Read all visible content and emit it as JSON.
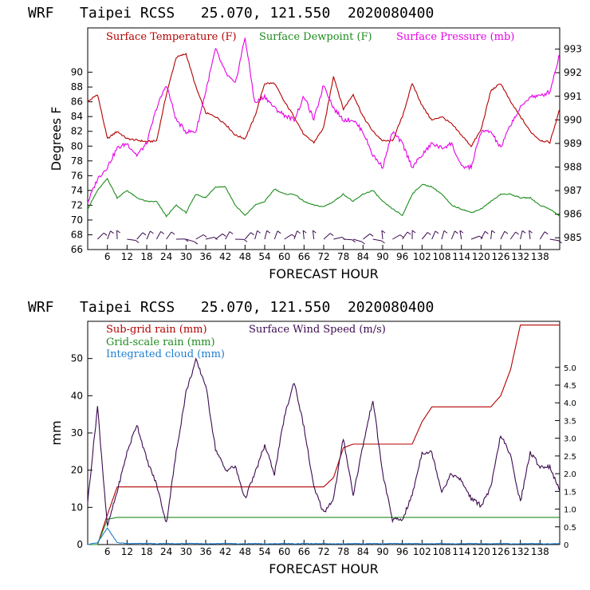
{
  "chart_data": [
    {
      "type": "line",
      "title": "WRF   Taipei RCSS   25.070, 121.550  2020080400",
      "xlabel": "FORECAST HOUR",
      "ylabel": "Degrees F",
      "xlim": [
        0,
        144
      ],
      "ylim": [
        66,
        96
      ],
      "y2lim": [
        984.5,
        993.9
      ],
      "x_ticks": [
        "6",
        "12",
        "18",
        "24",
        "30",
        "36",
        "42",
        "48",
        "54",
        "60",
        "66",
        "72",
        "78",
        "84",
        "90",
        "96",
        "102",
        "108",
        "114",
        "120",
        "126",
        "132",
        "138"
      ],
      "y_ticks": [
        "66",
        "68",
        "70",
        "72",
        "74",
        "76",
        "78",
        "80",
        "82",
        "84",
        "86",
        "88",
        "90"
      ],
      "y2_ticks": [
        "985",
        "986",
        "987",
        "988",
        "989",
        "990",
        "991",
        "992",
        "993"
      ],
      "x": [
        0,
        3,
        6,
        9,
        12,
        15,
        18,
        21,
        24,
        27,
        30,
        33,
        36,
        39,
        42,
        45,
        48,
        51,
        54,
        57,
        60,
        63,
        66,
        69,
        72,
        75,
        78,
        81,
        84,
        87,
        90,
        93,
        96,
        99,
        102,
        105,
        108,
        111,
        114,
        117,
        120,
        123,
        126,
        129,
        132,
        135,
        138,
        141,
        144
      ],
      "series": [
        {
          "name": "Surface Temperature (F)",
          "color": "#b40000",
          "axis": "left",
          "values": [
            86,
            87,
            81,
            82,
            81,
            80.8,
            80.6,
            80.7,
            87,
            92,
            92.5,
            88,
            84.5,
            84,
            83,
            81.5,
            81,
            84,
            88.5,
            88.5,
            86,
            84,
            81.5,
            80.5,
            82.5,
            89.5,
            85,
            87,
            84,
            82,
            80.7,
            80.7,
            84,
            88.5,
            85.5,
            83.5,
            84,
            83,
            81.5,
            80,
            82.2,
            87.5,
            88.5,
            86,
            84,
            82,
            80.8,
            80.5,
            85
          ]
        },
        {
          "name": "Surface Dewpoint (F)",
          "color": "#1e8c1e",
          "axis": "left",
          "values": [
            71.5,
            74,
            75.6,
            73,
            74,
            73,
            72.5,
            72.5,
            70.5,
            72,
            71,
            73.5,
            73,
            74.5,
            74.5,
            72,
            70.6,
            72,
            72.5,
            74.2,
            73.5,
            73.5,
            72.5,
            72,
            71.8,
            72.5,
            73.5,
            72.5,
            73.5,
            74,
            72.5,
            71.5,
            70.6,
            73.5,
            74.8,
            74.5,
            73.5,
            72,
            71.5,
            71,
            71.5,
            72.5,
            73.5,
            73.5,
            73,
            73,
            72,
            71.5,
            70.5
          ]
        },
        {
          "name": "Surface Pressure (mb)",
          "color": "#e600e6",
          "axis": "right",
          "values": [
            986.5,
            987.5,
            988,
            988.8,
            989,
            988.5,
            989,
            990.5,
            991.5,
            990,
            989.5,
            989.5,
            991.2,
            993,
            992,
            991.5,
            993.5,
            990.7,
            991,
            990.5,
            990.2,
            990,
            991,
            990,
            991.5,
            990.5,
            990,
            990,
            989.5,
            988.5,
            988,
            989.5,
            989,
            988,
            988.5,
            989,
            988.8,
            989,
            988,
            988,
            989.5,
            989.5,
            988.8,
            989.8,
            990.5,
            991,
            991,
            991.2,
            992.8
          ]
        }
      ],
      "wind_barbs_row": "surface wind barbs"
    },
    {
      "type": "line",
      "title": "WRF   Taipei RCSS   25.070, 121.550  2020080400",
      "xlabel": "FORECAST HOUR",
      "ylabel": "mm",
      "xlim": [
        0,
        144
      ],
      "ylim": [
        0,
        60
      ],
      "y2lim": [
        0,
        6.3
      ],
      "x_ticks": [
        "6",
        "12",
        "18",
        "24",
        "30",
        "36",
        "42",
        "48",
        "54",
        "60",
        "66",
        "72",
        "78",
        "84",
        "90",
        "96",
        "102",
        "108",
        "114",
        "120",
        "126",
        "132",
        "138"
      ],
      "y_ticks": [
        "0",
        "10",
        "20",
        "30",
        "40",
        "50"
      ],
      "y2_ticks": [
        "0",
        "0.5",
        "1.0",
        "1.5",
        "2.0",
        "2.5",
        "3.0",
        "3.5",
        "4.0",
        "4.5",
        "5.0"
      ],
      "x": [
        0,
        3,
        6,
        9,
        12,
        15,
        18,
        21,
        24,
        27,
        30,
        33,
        36,
        39,
        42,
        45,
        48,
        51,
        54,
        57,
        60,
        63,
        66,
        69,
        72,
        75,
        78,
        81,
        84,
        87,
        90,
        93,
        96,
        99,
        102,
        105,
        108,
        111,
        114,
        117,
        120,
        123,
        126,
        129,
        132,
        135,
        138,
        141,
        144
      ],
      "series": [
        {
          "name": "Sub-grid rain (mm)",
          "color": "#b40000",
          "axis": "left",
          "values": [
            0,
            0,
            8,
            15.5,
            15.5,
            15.5,
            15.5,
            15.5,
            15.5,
            15.5,
            15.5,
            15.5,
            15.5,
            15.5,
            15.5,
            15.5,
            15.5,
            15.5,
            15.5,
            15.5,
            15.5,
            15.5,
            15.5,
            15.5,
            15.5,
            18,
            26,
            27,
            27,
            27,
            27,
            27,
            27,
            27,
            33,
            37,
            37,
            37,
            37,
            37,
            37,
            37,
            40,
            47,
            59,
            59,
            59,
            59,
            59
          ]
        },
        {
          "name": "Grid-scale rain (mm)",
          "color": "#1e8c1e",
          "axis": "left",
          "values": [
            0,
            0,
            6.8,
            7.3,
            7.3,
            7.3,
            7.3,
            7.3,
            7.3,
            7.3,
            7.3,
            7.3,
            7.3,
            7.3,
            7.3,
            7.3,
            7.3,
            7.3,
            7.3,
            7.3,
            7.3,
            7.3,
            7.3,
            7.3,
            7.3,
            7.3,
            7.3,
            7.3,
            7.3,
            7.3,
            7.3,
            7.3,
            7.3,
            7.3,
            7.3,
            7.3,
            7.3,
            7.3,
            7.3,
            7.3,
            7.3,
            7.3,
            7.3,
            7.3,
            7.3,
            7.3,
            7.3,
            7.3,
            7.3
          ]
        },
        {
          "name": "Integrated cloud (mm)",
          "color": "#1e7fd0",
          "axis": "left",
          "values": [
            0,
            0.5,
            4.5,
            0.5,
            0.3,
            0.3,
            0.3,
            0.2,
            0.3,
            0.2,
            0.3,
            0.3,
            0.2,
            0.2,
            0.3,
            0.2,
            0.2,
            0.3,
            0.2,
            0.2,
            0.3,
            0.2,
            0.3,
            0.2,
            0.3,
            0.2,
            0.2,
            0.3,
            0.2,
            0.3,
            0.2,
            0.3,
            0.2,
            0.3,
            0.2,
            0.2,
            0.3,
            0.2,
            0.2,
            0.3,
            0.2,
            0.2,
            0.3,
            0.2,
            0.2,
            0.3,
            0.2,
            0.2,
            0.3
          ]
        },
        {
          "name": "Surface Wind Speed (m/s)",
          "color": "#3c0a50",
          "axis": "right",
          "values": [
            1.2,
            3.9,
            0.5,
            1.5,
            2.6,
            3.4,
            2.4,
            1.7,
            0.6,
            2.6,
            4.3,
            5.2,
            4.5,
            2.7,
            2.1,
            2.2,
            1.3,
            2.0,
            2.8,
            2.0,
            3.6,
            4.6,
            3.3,
            1.6,
            0.9,
            1.3,
            3.0,
            1.4,
            2.8,
            4.1,
            2.0,
            0.7,
            0.7,
            1.4,
            2.6,
            2.6,
            1.5,
            2.0,
            1.8,
            1.3,
            1.1,
            1.6,
            3.1,
            2.5,
            1.2,
            2.6,
            2.2,
            2.2,
            1.5
          ]
        }
      ]
    }
  ]
}
